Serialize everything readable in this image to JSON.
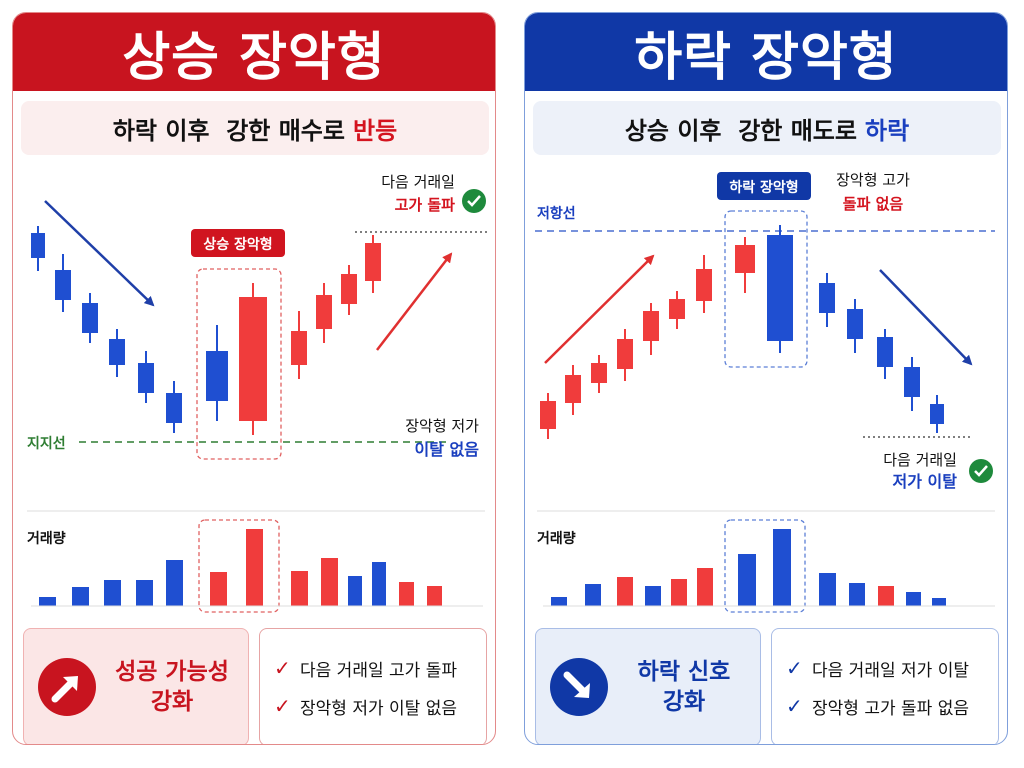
{
  "left": {
    "title": "상승 장악형",
    "subtitle_plain": "하락 이후  강한 매수로",
    "subtitle_accent": "반등",
    "pattern_label": "상승 장악형",
    "next_day_label": "다음 거래일",
    "next_day_value": "고가 돌파",
    "support_label": "지지선",
    "low_label": "장악형 저가",
    "low_value": "이탈 없음",
    "volume_label": "거래량",
    "badge_line1": "성공 가능성",
    "badge_line2": "강화",
    "checks": [
      "다음 거래일 고가 돌파",
      "장악형 저가 이탈 없음"
    ]
  },
  "right": {
    "title": "하락 장악형",
    "subtitle_plain": "상승 이후  강한 매도로",
    "subtitle_accent": "하락",
    "pattern_label": "하락 장악형",
    "high_label": "장악형 고가",
    "high_value": "돌파 없음",
    "resistance_label": "저항선",
    "next_day_label": "다음 거래일",
    "next_day_value": "저가 이탈",
    "volume_label": "거래량",
    "badge_line1": "하락 신호",
    "badge_line2": "강화",
    "checks": [
      "다음 거래일 저가 이탈",
      "장악형 고가 돌파 없음"
    ]
  },
  "colors": {
    "bull": "#f03c3c",
    "bear": "#1f4fd1",
    "left_accent": "#c8141f",
    "right_accent": "#1038a6",
    "support_line": "#2e7d32",
    "check_circle": "#1e8a3c"
  },
  "icons": {
    "check": "check-circle-icon",
    "up_arrow": "arrow-up-right-icon",
    "down_arrow": "arrow-down-right-icon"
  }
}
